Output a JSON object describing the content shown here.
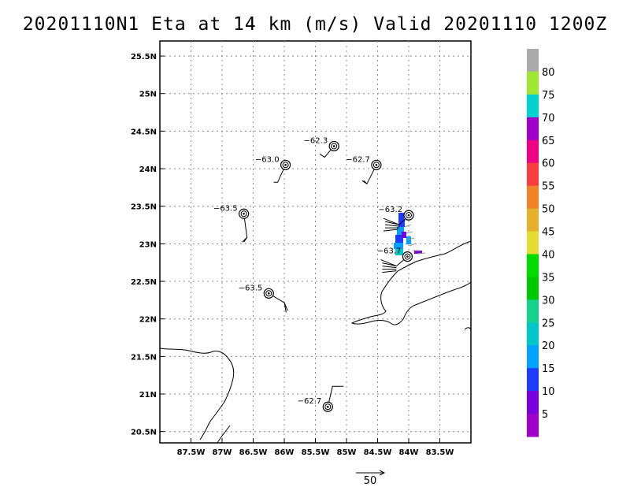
{
  "title": "20201110N1 Eta at 14 km (m/s) Valid 20201110 1200Z",
  "map": {
    "lat_labels": [
      "25.5N",
      "25N",
      "24.5N",
      "24N",
      "23.5N",
      "23N",
      "22.5N",
      "22N",
      "21.5N",
      "21N",
      "20.5N"
    ],
    "lon_labels": [
      "87.5W",
      "87W",
      "86.5W",
      "86W",
      "85.5W",
      "85W",
      "84.5W",
      "84W",
      "83.5W"
    ],
    "stations": [
      {
        "label": "−62.3",
        "lat": 24.3,
        "lon": -85.2
      },
      {
        "label": "−63.0",
        "lat": 24.05,
        "lon": -85.98
      },
      {
        "label": "−62.7",
        "lat": 24.05,
        "lon": -84.52
      },
      {
        "label": "−63.5",
        "lat": 23.4,
        "lon": -86.65
      },
      {
        "label": "−63.2",
        "lat": 23.38,
        "lon": -84.0
      },
      {
        "label": "−63.7",
        "lat": 22.83,
        "lon": -84.02
      },
      {
        "label": "−63.5",
        "lat": 22.34,
        "lon": -86.25
      },
      {
        "label": "−62.7",
        "lat": 20.83,
        "lon": -85.3
      }
    ]
  },
  "colorbar": {
    "labels": [
      "80",
      "75",
      "70",
      "65",
      "60",
      "55",
      "50",
      "45",
      "40",
      "35",
      "30",
      "25",
      "20",
      "15",
      "10",
      "5"
    ],
    "colors": [
      "#aaaaaa",
      "#a0e632",
      "#00d2d2",
      "#a000c8",
      "#f00082",
      "#fa3c3c",
      "#f08228",
      "#e6af2d",
      "#e6dc32",
      "#00dc00",
      "#00c800",
      "#14d28c",
      "#00c8c8",
      "#00a0ff",
      "#1e3cff",
      "#7800dc",
      "#a000c8"
    ]
  },
  "reference_vector": {
    "label": "50"
  }
}
